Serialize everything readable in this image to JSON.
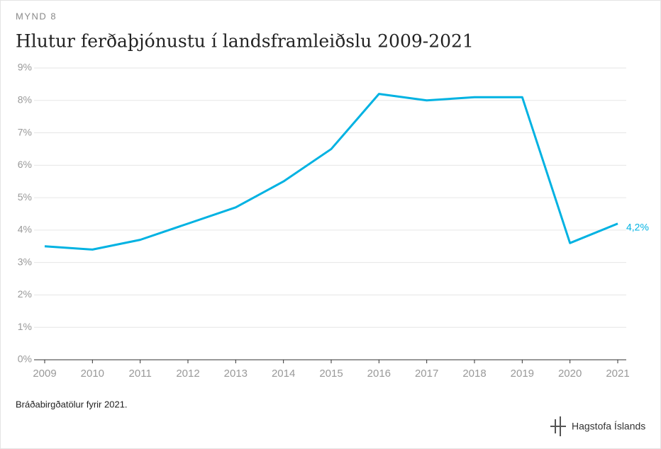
{
  "chart_data": {
    "type": "line",
    "label": "MYND 8",
    "title": "Hlutur ferðaþjónustu í landsframleiðslu 2009-2021",
    "note": "Bráðabirgðatölur fyrir 2021.",
    "source": "Hagstofa Íslands",
    "x": [
      2009,
      2010,
      2011,
      2012,
      2013,
      2014,
      2015,
      2016,
      2017,
      2018,
      2019,
      2020,
      2021
    ],
    "xlim": [
      2009,
      2021
    ],
    "xticks": [
      2009,
      2010,
      2011,
      2012,
      2013,
      2014,
      2015,
      2016,
      2017,
      2018,
      2019,
      2020,
      2021
    ],
    "values": [
      3.5,
      3.4,
      3.7,
      4.2,
      4.7,
      5.5,
      6.5,
      8.2,
      8.0,
      8.1,
      8.1,
      3.6,
      4.2
    ],
    "value_labels": [
      null,
      null,
      null,
      null,
      null,
      null,
      null,
      null,
      null,
      null,
      null,
      null,
      "4,2%"
    ],
    "color": "#00b2e2",
    "ylim": [
      0,
      9
    ],
    "yticks": [
      {
        "value": 0,
        "label": "0%"
      },
      {
        "value": 1,
        "label": "1%"
      },
      {
        "value": 2,
        "label": "2%"
      },
      {
        "value": 3,
        "label": "3%"
      },
      {
        "value": 4,
        "label": "4%"
      },
      {
        "value": 5,
        "label": "5%"
      },
      {
        "value": 6,
        "label": "6%"
      },
      {
        "value": 7,
        "label": "7%"
      },
      {
        "value": 8,
        "label": "8%"
      },
      {
        "value": 9,
        "label": "9%"
      }
    ],
    "grid": true
  }
}
